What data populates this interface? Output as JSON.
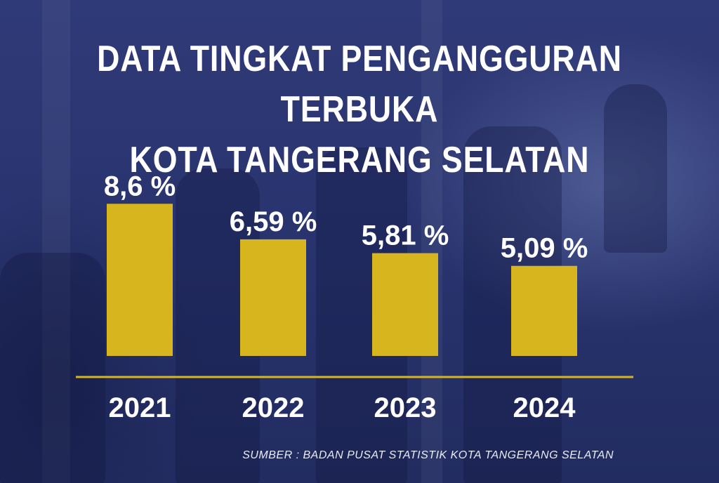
{
  "title_lines": [
    "DATA TINGKAT PENGANGGURAN TERBUKA",
    "KOTA TANGERANG SELATAN"
  ],
  "source": "SUMBER : BADAN PUSAT STATISTIK KOTA TANGERANG SELATAN",
  "colors": {
    "bar": "#d7b51f",
    "axis": "#d7b51f",
    "text": "#ffffff",
    "background": "#2b3670"
  },
  "chart_data": {
    "type": "bar",
    "title": "DATA TINGKAT PENGANGGURAN TERBUKA KOTA TANGERANG SELATAN",
    "categories": [
      "2021",
      "2022",
      "2023",
      "2024"
    ],
    "values": [
      8.6,
      6.59,
      5.81,
      5.09
    ],
    "value_labels": [
      "8,6 %",
      "6,59 %",
      "5,81 %",
      "5,09 %"
    ],
    "unit": "%",
    "ylim": [
      0,
      10
    ],
    "grid": false,
    "legend": "none"
  }
}
